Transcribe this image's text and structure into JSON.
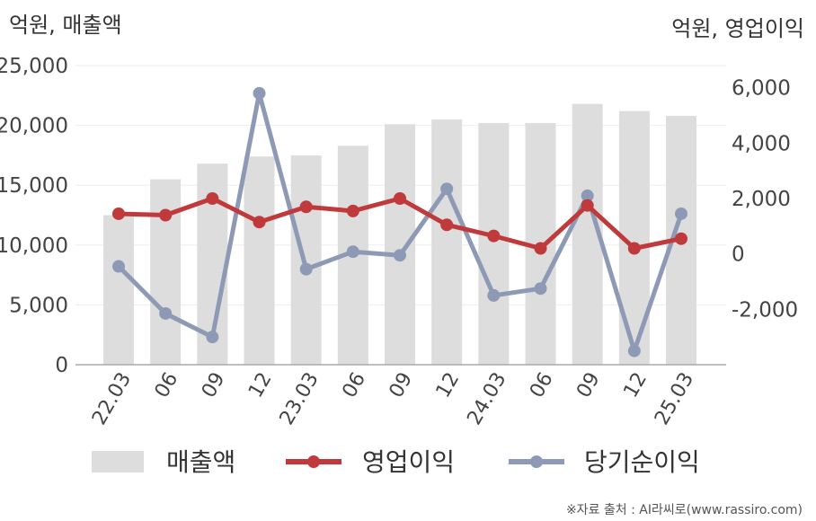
{
  "chart_data": {
    "type": "bar",
    "left_axis_unit": "억원, 매출액",
    "right_axis_unit": "억원, 영업이익",
    "categories": [
      "22.03",
      "06",
      "09",
      "12",
      "23.03",
      "06",
      "09",
      "12",
      "24.03",
      "06",
      "09",
      "12",
      "25.03"
    ],
    "left_ylim": [
      0,
      25000
    ],
    "left_ticks": [
      "25,000",
      "20,000",
      "15,000",
      "10,000",
      "5,000",
      "0"
    ],
    "right_ylim": [
      -4000,
      6800
    ],
    "right_ticks": [
      "6,000",
      "4,000",
      "2,000",
      "0",
      "-2,000"
    ],
    "series": [
      {
        "name": "매출액",
        "type": "bar",
        "axis": "left",
        "color": "#dddddd",
        "values": [
          12500,
          15500,
          16800,
          17400,
          17500,
          18300,
          20100,
          20500,
          20200,
          20200,
          21800,
          21200,
          20800
        ]
      },
      {
        "name": "영업이익",
        "type": "line",
        "axis": "right",
        "color": "#c0393b",
        "values": [
          1450,
          1400,
          2000,
          1150,
          1700,
          1550,
          2000,
          1050,
          650,
          200,
          1750,
          200,
          550
        ]
      },
      {
        "name": "당기순이익",
        "type": "line",
        "axis": "right",
        "color": "#8e9ab5",
        "values": [
          -450,
          -2150,
          -3000,
          5800,
          -550,
          80,
          -50,
          2350,
          -1500,
          -1250,
          2100,
          -3500,
          1450
        ]
      }
    ],
    "grid": true,
    "legend_position": "bottom"
  },
  "source_text": "※자료 출처 : AI라씨로(www.rassiro.com)"
}
